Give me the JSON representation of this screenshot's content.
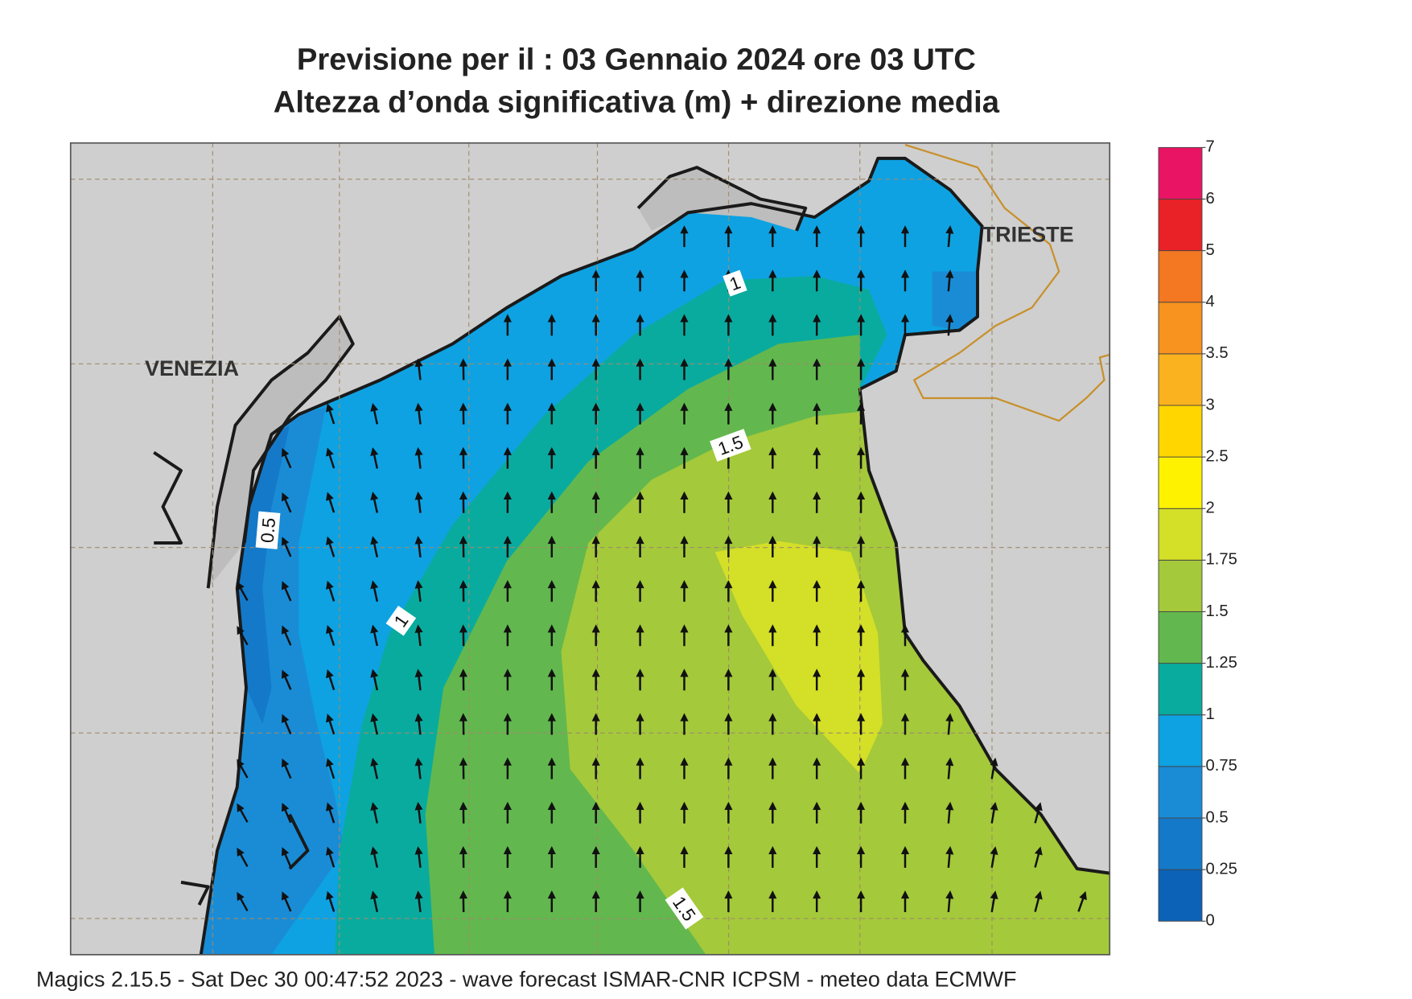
{
  "title": [
    "Previsione per il  :  03  Gennaio  2024   ore 03 UTC",
    "Altezza d’onda significativa (m) + direzione media"
  ],
  "map": {
    "places": [
      "VENEZIA",
      "TRIESTE"
    ],
    "contour_labels": [
      1,
      1.5,
      0.5,
      1,
      1.5
    ]
  },
  "colorbar": {
    "ticks": [
      0,
      0.25,
      0.5,
      0.75,
      1,
      1.25,
      1.5,
      1.75,
      2,
      2.5,
      3,
      3.5,
      4,
      5,
      6,
      7
    ],
    "colors": [
      "#0b62b6",
      "#1479c9",
      "#1a8cd6",
      "#0ea2e2",
      "#0aab9f",
      "#62b84e",
      "#a4c93a",
      "#d4df28",
      "#fff200",
      "#ffd600",
      "#fbb21f",
      "#f7931e",
      "#f47721",
      "#e82226",
      "#ea1465"
    ]
  },
  "footer": "Magics 2.15.5 - Sat Dec 30 00:47:52 2023 - wave forecast  ISMAR-CNR  ICPSM - meteo data   ECMWF"
}
